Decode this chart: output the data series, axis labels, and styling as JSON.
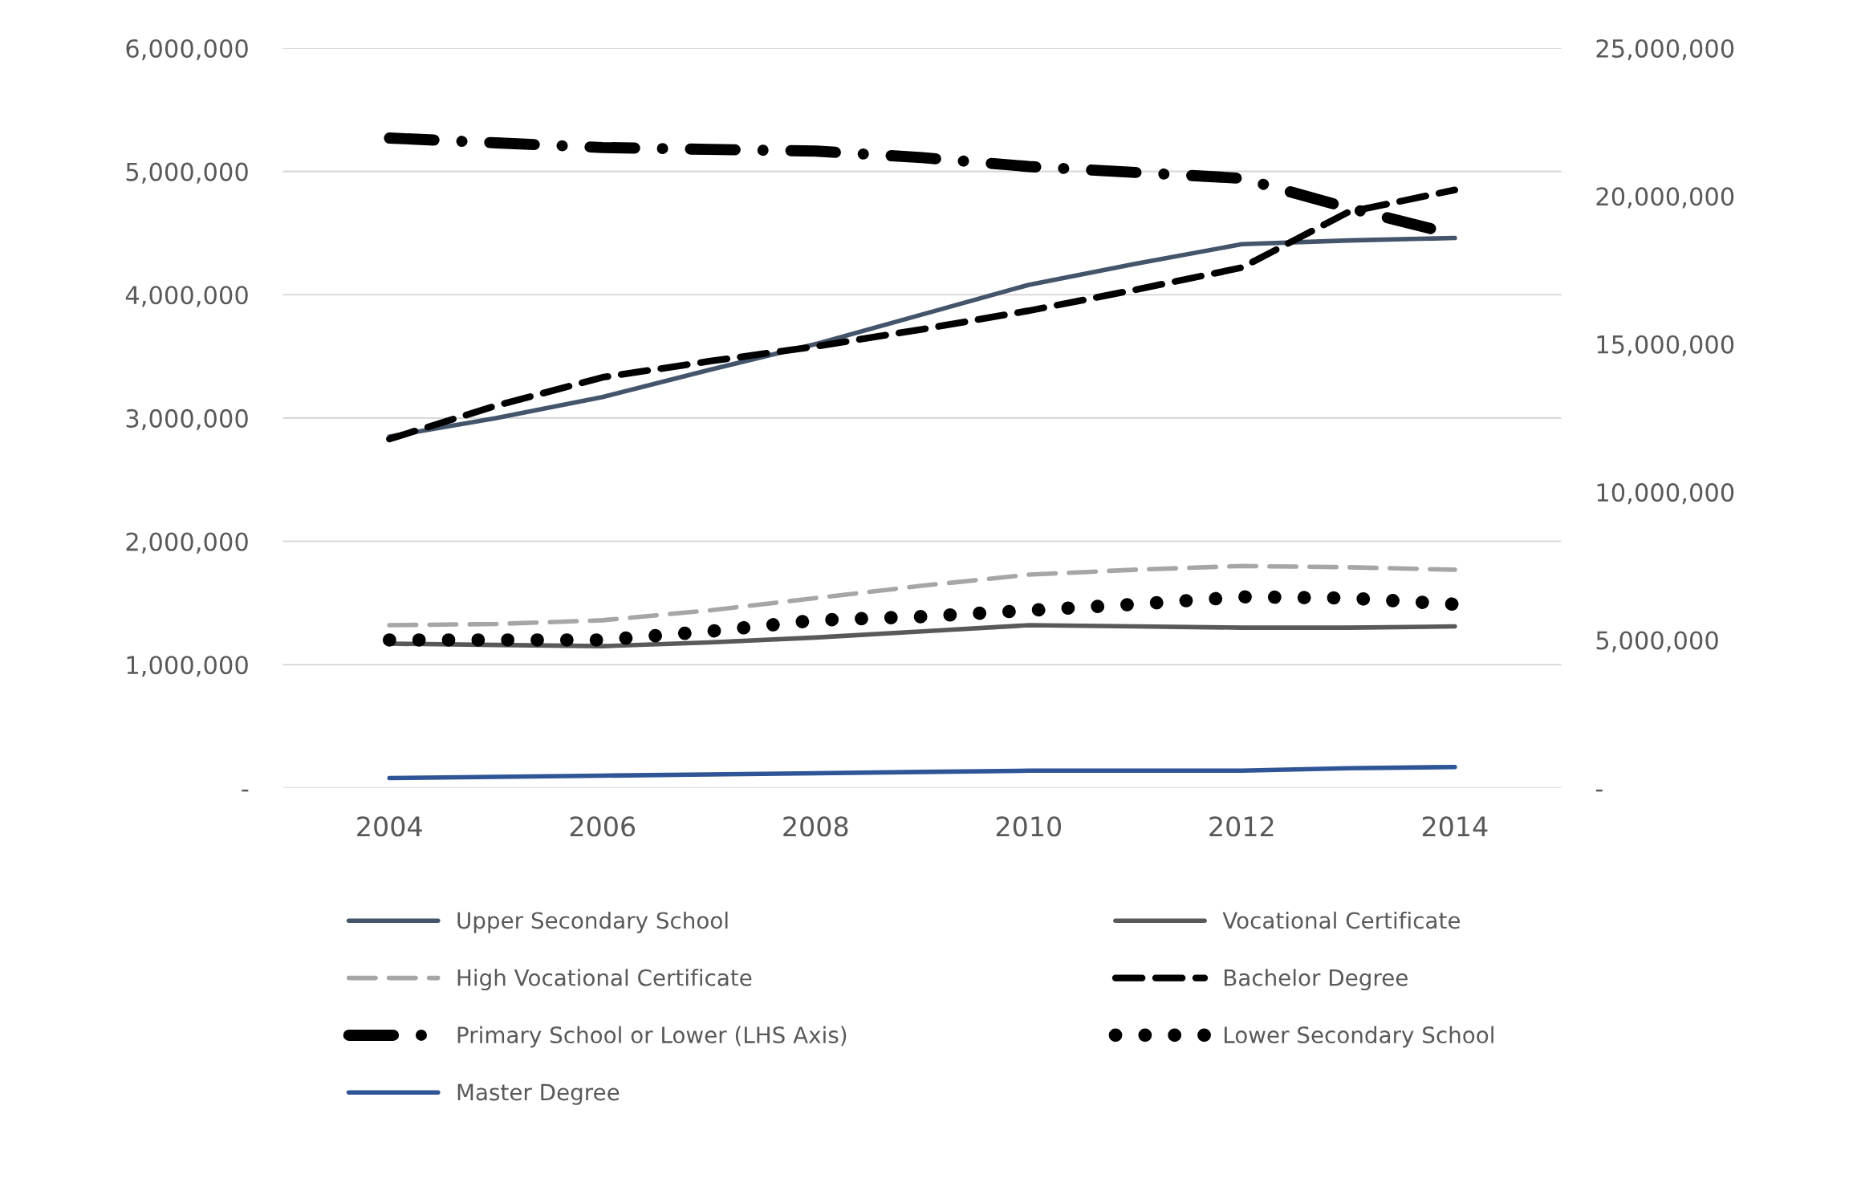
{
  "chart_data": {
    "type": "line",
    "x": [
      2004,
      2005,
      2006,
      2007,
      2008,
      2009,
      2010,
      2011,
      2012,
      2013,
      2014
    ],
    "xlim": [
      2003,
      2015
    ],
    "xticks": [
      2004,
      2006,
      2008,
      2010,
      2012,
      2014
    ],
    "ylim": [
      0,
      6000000
    ],
    "yticks": [
      {
        "value": 0,
        "label": "-"
      },
      {
        "value": 1000000,
        "label": "1,000,000"
      },
      {
        "value": 2000000,
        "label": "2,000,000"
      },
      {
        "value": 3000000,
        "label": "3,000,000"
      },
      {
        "value": 4000000,
        "label": "4,000,000"
      },
      {
        "value": 5000000,
        "label": "5,000,000"
      },
      {
        "value": 6000000,
        "label": "6,000,000"
      }
    ],
    "y2lim": [
      0,
      25000000
    ],
    "y2ticks": [
      {
        "value": 0,
        "label": "-"
      },
      {
        "value": 5000000,
        "label": "5,000,000"
      },
      {
        "value": 10000000,
        "label": "10,000,000"
      },
      {
        "value": 15000000,
        "label": "15,000,000"
      },
      {
        "value": 20000000,
        "label": "20,000,000"
      },
      {
        "value": 25000000,
        "label": "25,000,000"
      }
    ],
    "grid": "y",
    "legend": "bottom",
    "series": [
      {
        "name": "Upper Secondary School",
        "color": "#44546a",
        "line_style": "solid",
        "values": [
          2850000,
          3000000,
          3170000,
          3390000,
          3600000,
          3840000,
          4080000,
          4250000,
          4410000,
          4440000,
          4460000
        ]
      },
      {
        "name": "Vocational Certificate",
        "color": "#595959",
        "line_style": "solid",
        "values": [
          1170000,
          1160000,
          1150000,
          1180000,
          1220000,
          1270000,
          1320000,
          1310000,
          1300000,
          1300000,
          1310000
        ]
      },
      {
        "name": "High Vocational Certificate",
        "color": "#a6a6a6",
        "line_style": "dashed",
        "values": [
          1320000,
          1330000,
          1360000,
          1440000,
          1540000,
          1640000,
          1730000,
          1770000,
          1800000,
          1790000,
          1770000
        ]
      },
      {
        "name": "Bachelor Degree",
        "color": "#000000",
        "line_style": "dashed",
        "values": [
          2830000,
          3100000,
          3330000,
          3460000,
          3580000,
          3720000,
          3870000,
          4040000,
          4220000,
          4670000,
          4850000
        ]
      },
      {
        "name": "Primary School or Lower (LHS Axis)",
        "color": "#000000",
        "line_style": "dashdot",
        "axis": "y2",
        "values": [
          21960000,
          21800000,
          21640000,
          21580000,
          21520000,
          21300000,
          21000000,
          20800000,
          20600000,
          19600000,
          18700000
        ]
      },
      {
        "name": "Lower Secondary School",
        "color": "#000000",
        "line_style": "dotted",
        "values": [
          1200000,
          1200000,
          1200000,
          1270000,
          1360000,
          1390000,
          1440000,
          1490000,
          1550000,
          1540000,
          1490000
        ]
      },
      {
        "name": "Master Degree",
        "color": "#2f5597",
        "line_style": "solid",
        "values": [
          80000,
          90000,
          100000,
          110000,
          120000,
          130000,
          140000,
          140000,
          140000,
          160000,
          170000
        ]
      }
    ]
  }
}
